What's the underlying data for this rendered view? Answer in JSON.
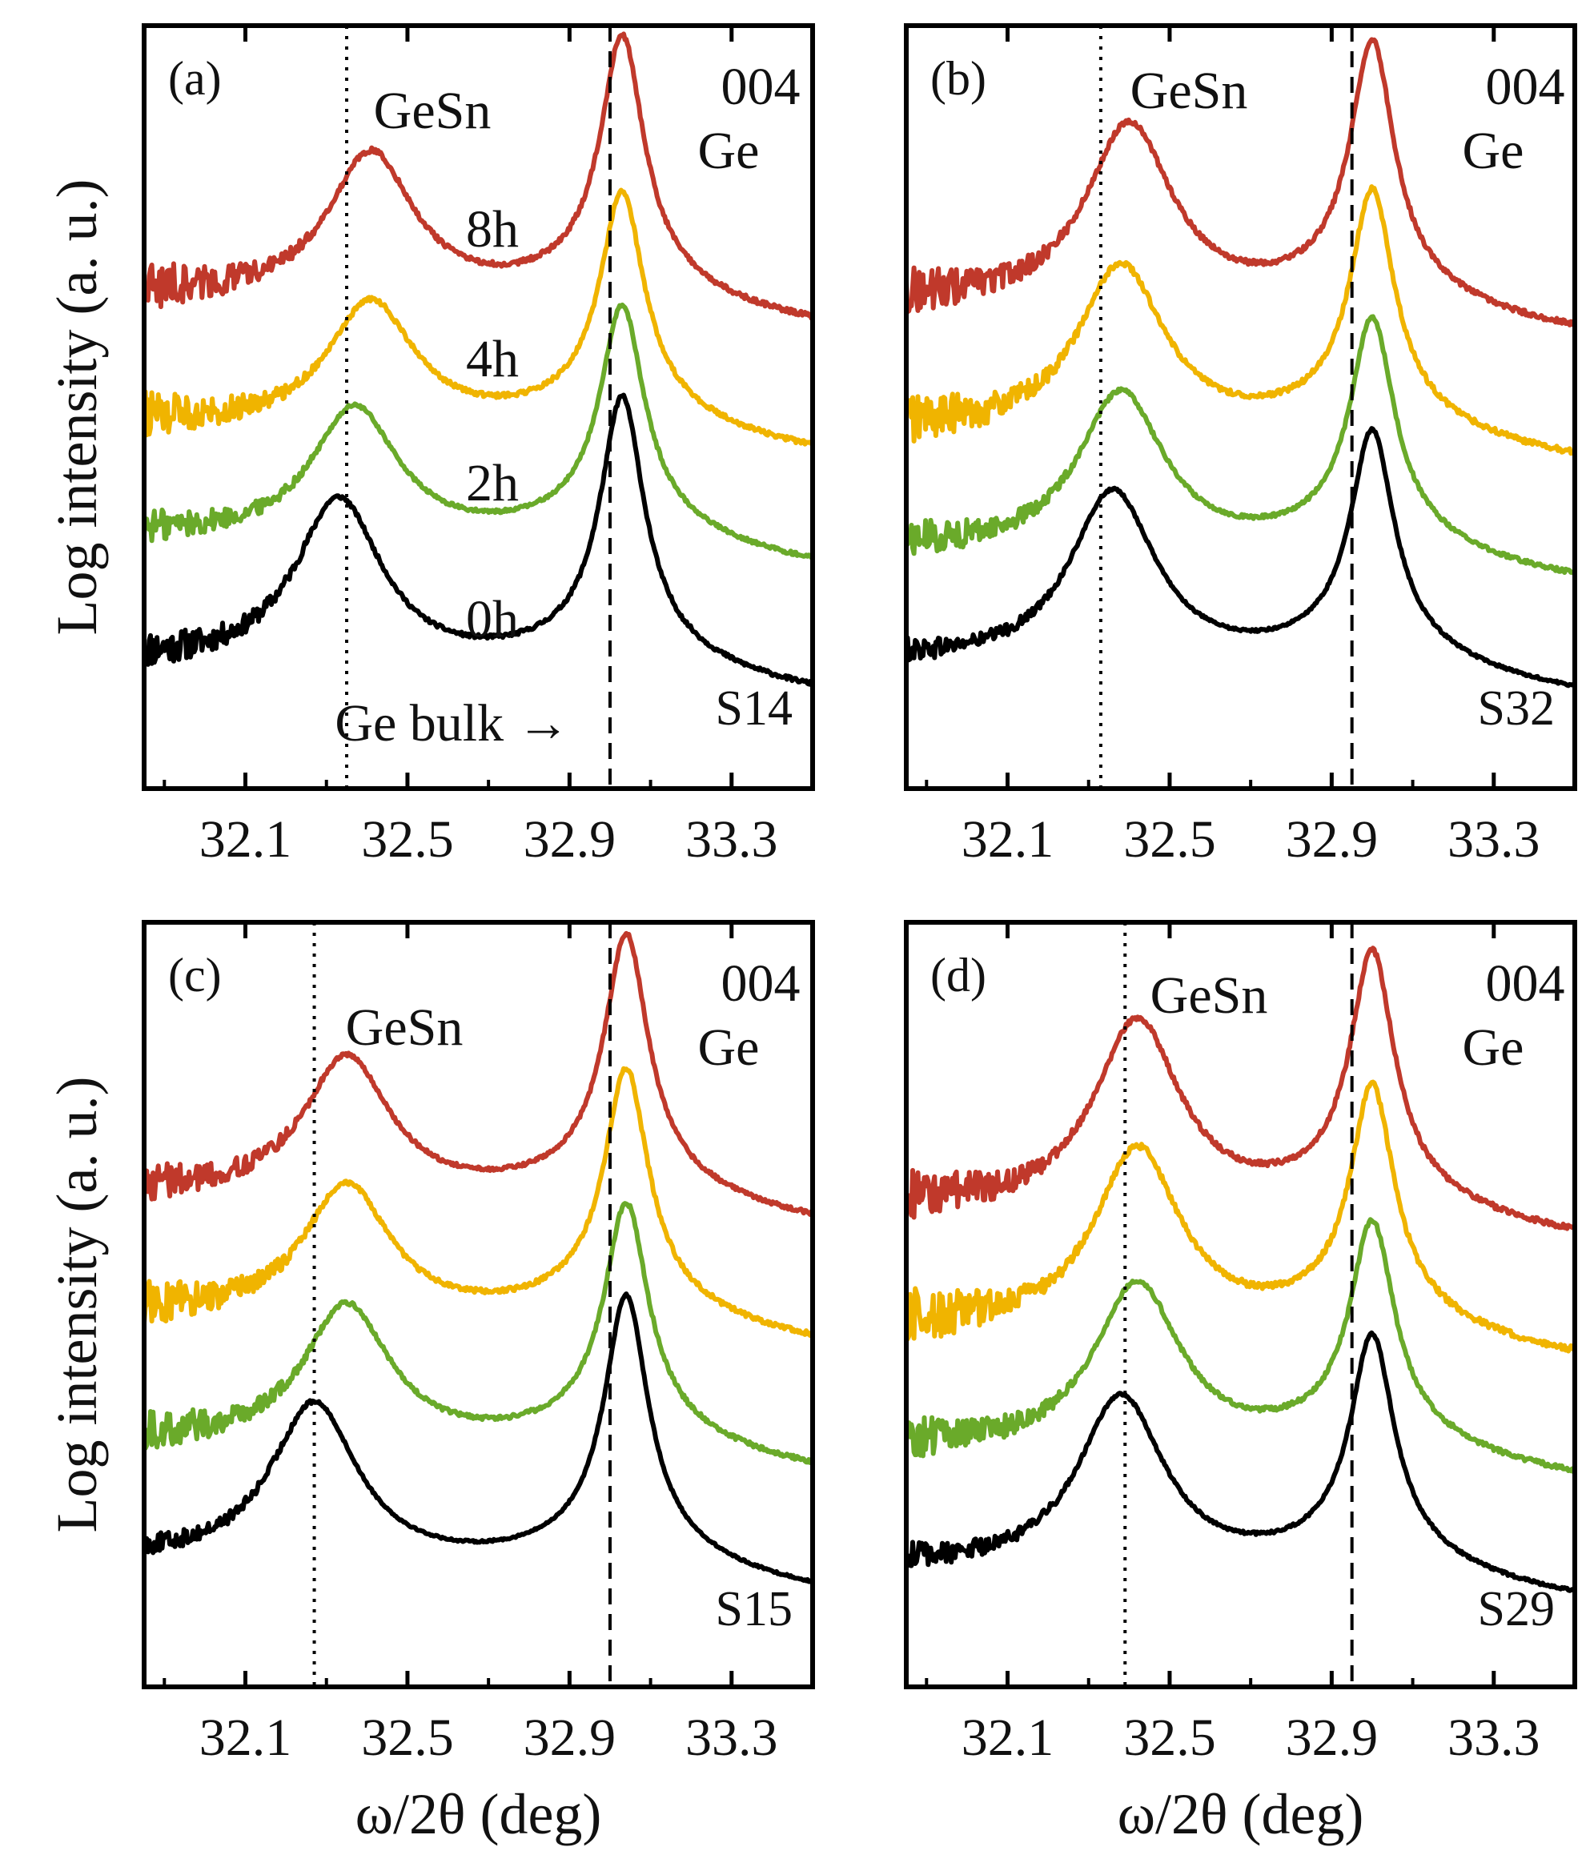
{
  "colors": {
    "8h": "#c0392b",
    "4h": "#f0b400",
    "2h": "#6aaa2a",
    "0h": "#000000",
    "axes": "#000000"
  },
  "chart_data": [
    {
      "type": "line",
      "panel": "(a)",
      "sample": "S14",
      "ylabel": "Log intensity (a. u.)",
      "xlabel": "",
      "xticks": [
        "32.1",
        "32.5",
        "32.9",
        "33.3"
      ],
      "xlim": [
        31.85,
        33.5
      ],
      "ylim": [
        0,
        10
      ],
      "grid": false,
      "annotations": [
        "GeSn",
        "004",
        "Ge",
        "8h",
        "4h",
        "2h",
        "0h",
        "Ge bulk →"
      ],
      "ref_lines": {
        "dotted": 32.35,
        "dashed": 33.0
      },
      "series": [
        {
          "name": "8h",
          "gesn_peak": 32.41,
          "gesn_amp": 2.1,
          "ge_peak": 33.03,
          "ge_amp": 3.4,
          "baseline": 5.8,
          "noise": 0.28
        },
        {
          "name": "4h",
          "gesn_peak": 32.41,
          "gesn_amp": 1.8,
          "ge_peak": 33.03,
          "ge_amp": 3.0,
          "baseline": 4.0,
          "noise": 0.26
        },
        {
          "name": "2h",
          "gesn_peak": 32.37,
          "gesn_amp": 1.9,
          "ge_peak": 33.03,
          "ge_amp": 3.0,
          "baseline": 2.4,
          "noise": 0.2
        },
        {
          "name": "0h",
          "gesn_peak": 32.33,
          "gesn_amp": 2.4,
          "ge_peak": 33.03,
          "ge_amp": 3.5,
          "baseline": 0.6,
          "noise": 0.22
        }
      ]
    },
    {
      "type": "line",
      "panel": "(b)",
      "sample": "S32",
      "ylabel": "",
      "xlabel": "",
      "xticks": [
        "32.1",
        "32.5",
        "32.9",
        "33.3"
      ],
      "xlim": [
        31.85,
        33.5
      ],
      "ylim": [
        0,
        10
      ],
      "grid": false,
      "annotations": [
        "GeSn",
        "004",
        "Ge"
      ],
      "ref_lines": {
        "dotted": 32.33,
        "dashed": 32.95
      },
      "series": [
        {
          "name": "8h",
          "gesn_peak": 32.4,
          "gesn_amp": 2.6,
          "ge_peak": 33.0,
          "ge_amp": 3.4,
          "baseline": 5.7,
          "noise": 0.28
        },
        {
          "name": "4h",
          "gesn_peak": 32.38,
          "gesn_amp": 2.4,
          "ge_peak": 33.0,
          "ge_amp": 3.1,
          "baseline": 3.9,
          "noise": 0.3
        },
        {
          "name": "2h",
          "gesn_peak": 32.38,
          "gesn_amp": 2.3,
          "ge_peak": 33.0,
          "ge_amp": 3.0,
          "baseline": 2.2,
          "noise": 0.22
        },
        {
          "name": "0h",
          "gesn_peak": 32.36,
          "gesn_amp": 2.5,
          "ge_peak": 33.0,
          "ge_amp": 3.0,
          "baseline": 0.6,
          "noise": 0.14
        }
      ]
    },
    {
      "type": "line",
      "panel": "(c)",
      "sample": "S15",
      "ylabel": "Log intensity (a. u.)",
      "xlabel": "ω/2θ (deg)",
      "xticks": [
        "32.1",
        "32.5",
        "32.9",
        "33.3"
      ],
      "xlim": [
        31.85,
        33.5
      ],
      "ylim": [
        0,
        10
      ],
      "grid": false,
      "annotations": [
        "GeSn",
        "004",
        "Ge"
      ],
      "ref_lines": {
        "dotted": 32.27,
        "dashed": 33.0
      },
      "series": [
        {
          "name": "8h",
          "gesn_peak": 32.35,
          "gesn_amp": 2.0,
          "ge_peak": 33.04,
          "ge_amp": 3.4,
          "baseline": 5.8,
          "noise": 0.22
        },
        {
          "name": "4h",
          "gesn_peak": 32.35,
          "gesn_amp": 1.9,
          "ge_peak": 33.04,
          "ge_amp": 3.2,
          "baseline": 4.1,
          "noise": 0.26
        },
        {
          "name": "2h",
          "gesn_peak": 32.35,
          "gesn_amp": 2.0,
          "ge_peak": 33.04,
          "ge_amp": 3.1,
          "baseline": 2.3,
          "noise": 0.24
        },
        {
          "name": "0h",
          "gesn_peak": 32.27,
          "gesn_amp": 2.3,
          "ge_peak": 33.04,
          "ge_amp": 3.5,
          "baseline": 0.6,
          "noise": 0.12
        }
      ]
    },
    {
      "type": "line",
      "panel": "(d)",
      "sample": "S29",
      "ylabel": "",
      "xlabel": "ω/2θ (deg)",
      "xticks": [
        "32.1",
        "32.5",
        "32.9",
        "33.3"
      ],
      "xlim": [
        31.85,
        33.5
      ],
      "ylim": [
        0,
        10
      ],
      "grid": false,
      "annotations": [
        "GeSn",
        "004",
        "Ge"
      ],
      "ref_lines": {
        "dotted": 32.39,
        "dashed": 32.95
      },
      "series": [
        {
          "name": "8h",
          "gesn_peak": 32.42,
          "gesn_amp": 2.7,
          "ge_peak": 33.0,
          "ge_amp": 3.3,
          "baseline": 5.6,
          "noise": 0.3
        },
        {
          "name": "4h",
          "gesn_peak": 32.42,
          "gesn_amp": 2.6,
          "ge_peak": 33.0,
          "ge_amp": 3.1,
          "baseline": 3.9,
          "noise": 0.34
        },
        {
          "name": "2h",
          "gesn_peak": 32.42,
          "gesn_amp": 2.4,
          "ge_peak": 33.0,
          "ge_amp": 2.9,
          "baseline": 2.2,
          "noise": 0.26
        },
        {
          "name": "0h",
          "gesn_peak": 32.38,
          "gesn_amp": 2.5,
          "ge_peak": 33.0,
          "ge_amp": 3.0,
          "baseline": 0.5,
          "noise": 0.16
        }
      ]
    }
  ]
}
